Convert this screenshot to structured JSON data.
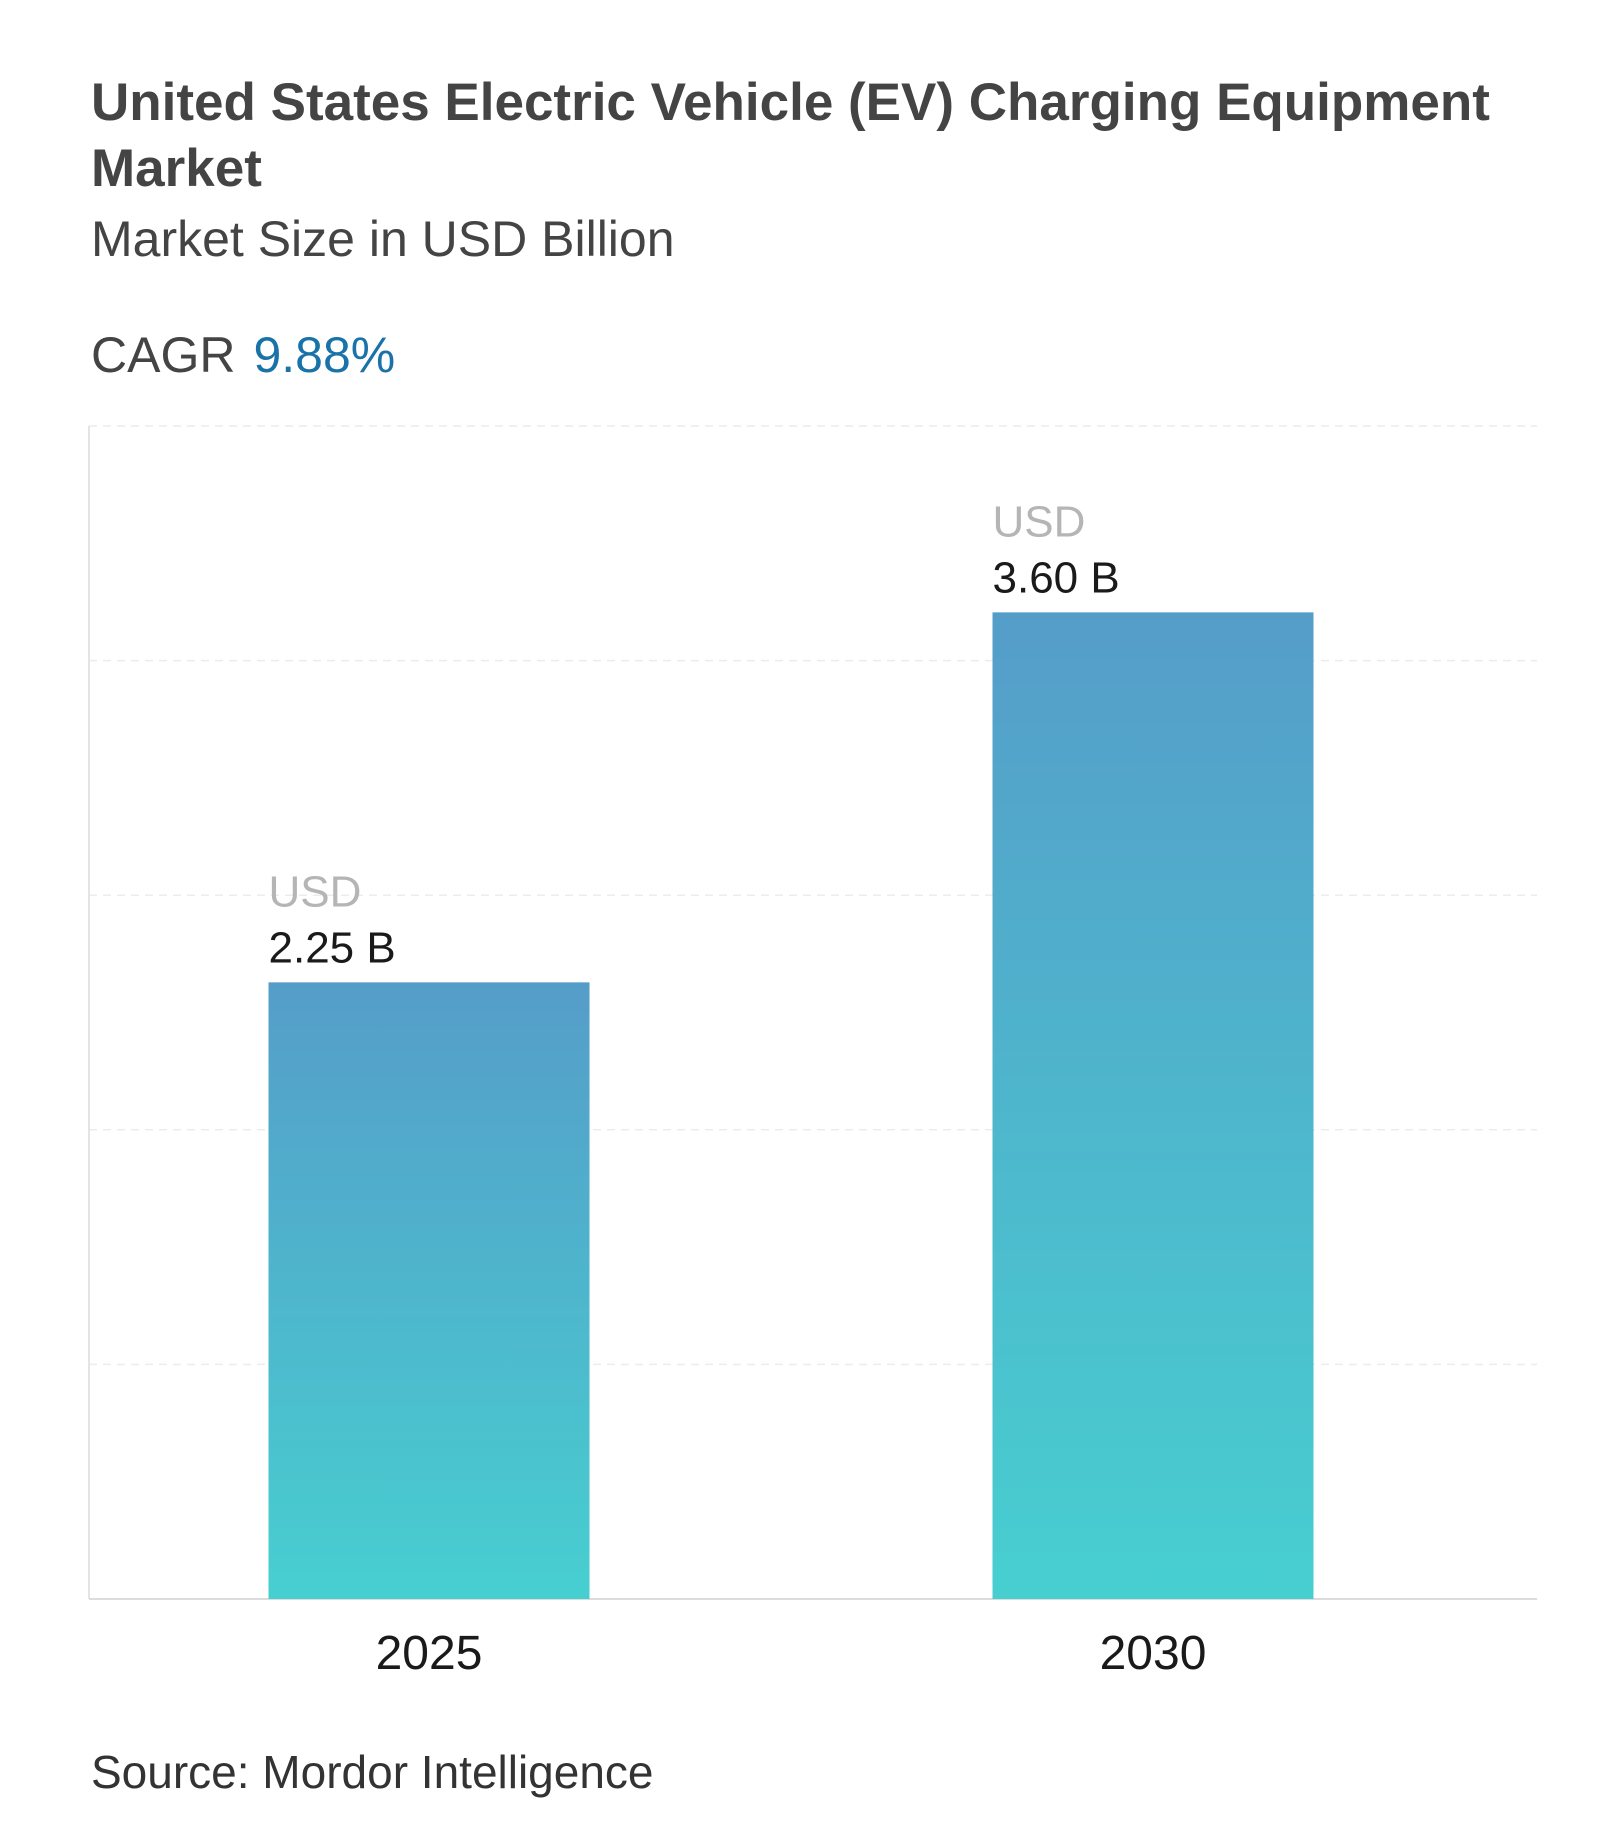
{
  "header": {
    "title": "United States Electric Vehicle (EV) Charging Equipment Market",
    "subtitle": "Market Size in USD Billion",
    "cagr_label": "CAGR",
    "cagr_value": "9.88%"
  },
  "colors": {
    "accent": "#1a73a8",
    "bar_top": "#559dc9",
    "bar_bottom": "#47cfd0"
  },
  "chart_data": {
    "type": "bar",
    "title": "United States Electric Vehicle (EV) Charging Equipment Market",
    "subtitle": "Market Size in USD Billion",
    "categories": [
      "2025",
      "2030"
    ],
    "values": [
      2.25,
      3.6
    ],
    "data_labels": [
      {
        "unit": "USD",
        "value": "2.25 B"
      },
      {
        "unit": "USD",
        "value": "3.60 B"
      }
    ],
    "xlabel": "",
    "ylabel": "",
    "ylim": [
      0,
      4.28
    ],
    "grid": true,
    "y_tick_labels_visible": false
  },
  "footer": {
    "source": "Source: Mordor Intelligence"
  }
}
